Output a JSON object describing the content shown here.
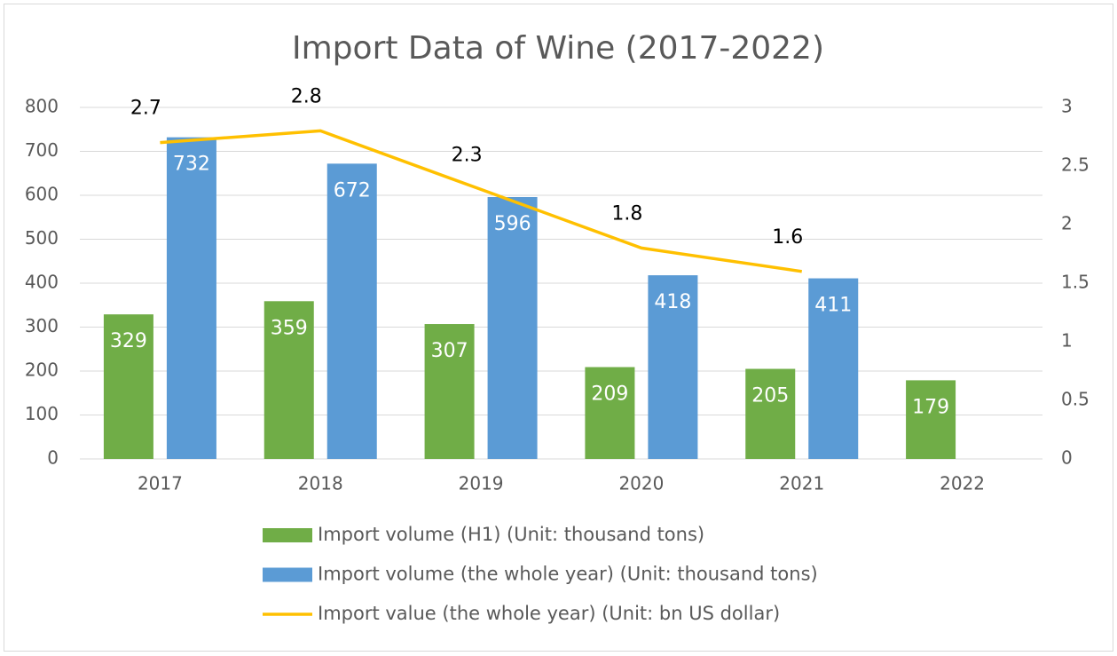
{
  "chart_data": {
    "type": "bar",
    "title": "Import Data of Wine (2017-2022)",
    "categories": [
      "2017",
      "2018",
      "2019",
      "2020",
      "2021",
      "2022"
    ],
    "series": [
      {
        "name": "Import volume (H1) (Unit: thousand tons)",
        "color": "#70ad47",
        "type": "bar",
        "values": [
          329,
          359,
          307,
          209,
          205,
          179
        ]
      },
      {
        "name": "Import volume (the whole year) (Unit: thousand tons)",
        "color": "#5b9bd5",
        "type": "bar",
        "values": [
          732,
          672,
          596,
          418,
          411,
          null
        ]
      },
      {
        "name": "Import value (the whole year) (Unit: bn US dollar)",
        "color": "#ffc000",
        "type": "line",
        "axis": "y2",
        "values": [
          2.7,
          2.8,
          2.3,
          1.8,
          1.6,
          null
        ]
      }
    ],
    "ylim": [
      0,
      800
    ],
    "yticks": [
      0,
      100,
      200,
      300,
      400,
      500,
      600,
      700,
      800
    ],
    "y2lim": [
      0,
      3
    ],
    "y2ticks": [
      0,
      0.5,
      1,
      1.5,
      2,
      2.5,
      3
    ],
    "grid": true,
    "legend": "bottom"
  }
}
